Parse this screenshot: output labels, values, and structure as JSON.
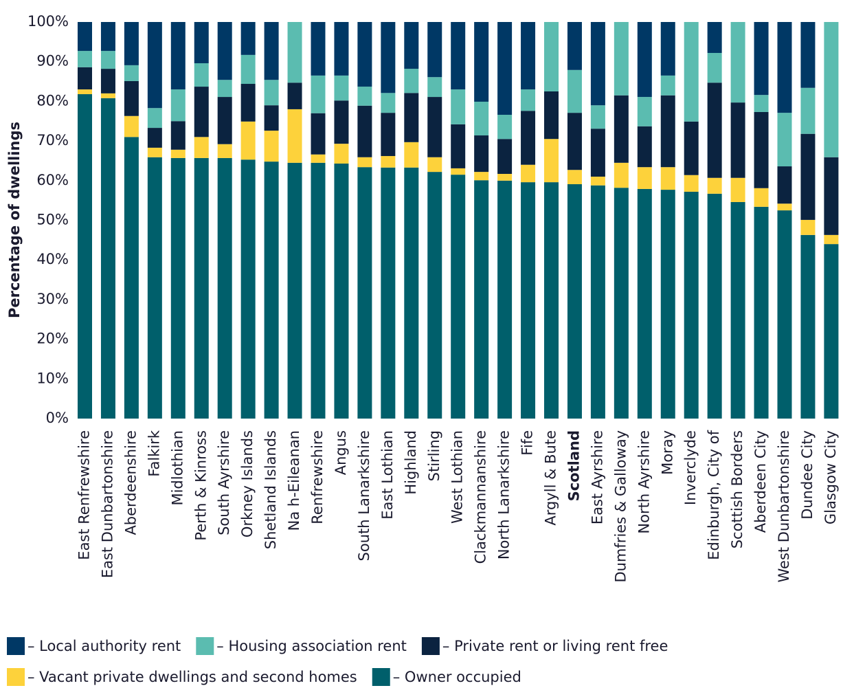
{
  "chart_data": {
    "type": "stacked_bar",
    "y_label": "Percentage of dwellings",
    "categories": [
      "East Renfrewshire",
      "East Dunbartonshire",
      "Aberdeenshire",
      "Falkirk",
      "Midlothian",
      "Perth & Kinross",
      "South Ayrshire",
      "Orkney Islands",
      "Shetland Islands",
      "Na h-Eileanan",
      "Renfrewshire",
      "Angus",
      "South Lanarkshire",
      "East Lothian",
      "Highland",
      "Stirling",
      "West Lothian",
      "Clackmannanshire",
      "North Lanarkshire",
      "Fife",
      "Argyll & Bute",
      "Scotland",
      "East Ayrshire",
      "Dumfries & Galloway",
      "North Ayrshire",
      "Moray",
      "Inverclyde",
      "Edinburgh, City of",
      "Scottish Borders",
      "Aberdeen City",
      "West Dunbartonshire",
      "Dundee City",
      "Glasgow City"
    ],
    "bold_category_index": 21,
    "series": [
      {
        "name": "– Local authority rent",
        "color": "#003865",
        "values": [
          7.3,
          7.3,
          10.9,
          21.7,
          17,
          10.4,
          14.6,
          8.3,
          14.6,
          0,
          13.5,
          13.5,
          16.3,
          17.9,
          11.8,
          13.9,
          17,
          20.1,
          23.4,
          17,
          0,
          12.1,
          21,
          0,
          18.9,
          13.5,
          0,
          7.8,
          0,
          18.4,
          22.9,
          16.6,
          0
        ]
      },
      {
        "name": "– Housing association rent",
        "color": "#5bbcb0",
        "values": [
          4.1,
          4.5,
          4,
          5,
          8,
          5.9,
          4.3,
          7.3,
          6.4,
          15.3,
          9.5,
          6.3,
          4.8,
          5,
          6.1,
          5,
          8.8,
          8.5,
          6.1,
          5.4,
          17.5,
          10.8,
          5.9,
          18.5,
          7.4,
          5,
          25.1,
          7.5,
          20.3,
          4.3,
          13.5,
          11.6,
          34.1
        ]
      },
      {
        "name": "– Private rent or living rent free",
        "color": "#0b2340",
        "values": [
          5.6,
          6.2,
          8.8,
          5,
          7.2,
          12.7,
          11.9,
          9.5,
          6.4,
          6.7,
          10.4,
          10.9,
          13,
          10.9,
          12.4,
          15.2,
          11.1,
          9.2,
          8.8,
          13.6,
          12,
          14.4,
          12.1,
          17,
          10.3,
          18.1,
          13.5,
          24,
          19,
          19.2,
          9.4,
          21.7,
          19.6
        ]
      },
      {
        "name": "– Vacant private dwellings and second homes",
        "color": "#fdd23b",
        "values": [
          1.2,
          1.2,
          5.3,
          2.4,
          2.1,
          5.3,
          3.5,
          9.6,
          7.8,
          13.5,
          2.1,
          5,
          2.5,
          2.9,
          6.4,
          3.7,
          1.6,
          2.1,
          1.7,
          4.4,
          10.9,
          3.6,
          2.2,
          6.3,
          5.5,
          5.7,
          4.2,
          4,
          6.1,
          4.7,
          1.7,
          3.8,
          2.3
        ]
      },
      {
        "name": "– Owner occupied",
        "color": "#005f6b",
        "values": [
          81.8,
          80.8,
          71,
          65.9,
          65.7,
          65.7,
          65.7,
          65.3,
          64.8,
          64.5,
          64.5,
          64.3,
          63.4,
          63.3,
          63.3,
          62.2,
          61.5,
          60.1,
          60,
          59.6,
          59.6,
          59.1,
          58.8,
          58.2,
          57.9,
          57.7,
          57.2,
          56.7,
          54.6,
          53.4,
          52.5,
          46.3,
          44
        ]
      }
    ],
    "ylim": [
      0,
      100
    ],
    "yticks": [
      {
        "value": 0,
        "label": "0%"
      },
      {
        "value": 10,
        "label": "10%"
      },
      {
        "value": 20,
        "label": "20%"
      },
      {
        "value": 30,
        "label": "30%"
      },
      {
        "value": 40,
        "label": "40%"
      },
      {
        "value": 50,
        "label": "50%"
      },
      {
        "value": 60,
        "label": "60%"
      },
      {
        "value": 70,
        "label": "70%"
      },
      {
        "value": 80,
        "label": "80%"
      },
      {
        "value": 90,
        "label": "90%"
      },
      {
        "value": 100,
        "label": "100%"
      }
    ],
    "grid": false
  }
}
